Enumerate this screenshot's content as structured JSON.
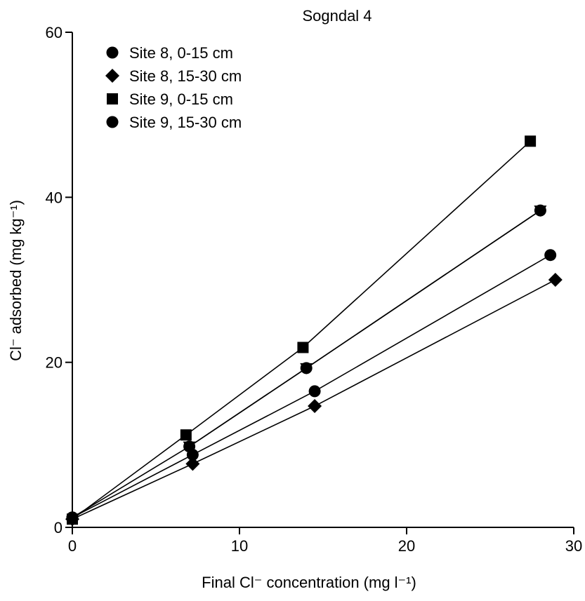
{
  "chart_data": {
    "type": "line",
    "title": "Sogndal 4",
    "xlabel": "Final Cl⁻ concentration (mg l⁻¹)",
    "ylabel": "Cl⁻ adsorbed (mg kg⁻¹)",
    "xlim": [
      0,
      30
    ],
    "ylim": [
      0,
      60
    ],
    "xticks": [
      0,
      10,
      20,
      30
    ],
    "yticks": [
      0,
      20,
      40,
      60
    ],
    "grid": false,
    "legend_position": "top-left",
    "series": [
      {
        "name": "Site 8, 0-15 cm",
        "marker": "circle",
        "x": [
          0,
          7.2,
          14.5,
          28.6
        ],
        "y": [
          1.2,
          8.8,
          16.5,
          33.0
        ]
      },
      {
        "name": "Site 8, 15-30 cm",
        "marker": "diamond",
        "x": [
          0,
          7.2,
          14.5,
          28.9
        ],
        "y": [
          1.0,
          7.7,
          14.7,
          30.0
        ]
      },
      {
        "name": "Site 9, 0-15 cm",
        "marker": "square",
        "x": [
          0,
          6.8,
          13.8,
          27.4
        ],
        "y": [
          1.0,
          11.2,
          21.8,
          46.8
        ]
      },
      {
        "name": "Site 9, 15-30 cm",
        "marker": "circle",
        "x": [
          0,
          7.0,
          14.0,
          28.0
        ],
        "y": [
          1.2,
          9.8,
          19.3,
          38.4
        ]
      },
      {
        "name": "",
        "marker": "triangle-down",
        "x": [
          7.0,
          14.0,
          28.0
        ],
        "y": [
          9.8,
          19.3,
          38.4
        ]
      }
    ]
  }
}
